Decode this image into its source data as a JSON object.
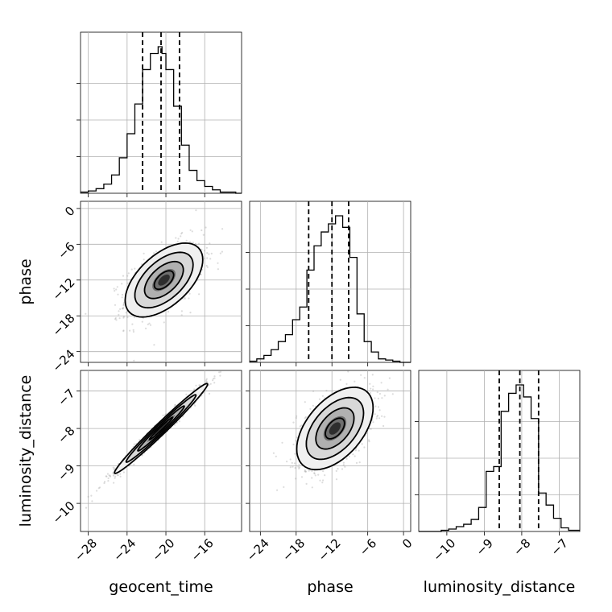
{
  "chart_data": {
    "type": "corner",
    "parameters": [
      "geocent_time",
      "phase",
      "luminosity_distance"
    ],
    "axis_labels": {
      "geocent_time": "geocent_time",
      "phase": "phase",
      "luminosity_distance": "luminosity_distance"
    },
    "ranges": {
      "geocent_time": [
        -28.8,
        -12.2
      ],
      "phase": [
        -25.8,
        1.2
      ],
      "luminosity_distance": [
        -10.75,
        -6.45
      ]
    },
    "ticks": {
      "geocent_time": [
        -28,
        -24,
        -20,
        -16
      ],
      "phase": [
        -24,
        -18,
        -12,
        -6,
        0
      ],
      "luminosity_distance": [
        -10,
        -9,
        -8,
        -7
      ]
    },
    "tick_labels": {
      "geocent_time": [
        "−28",
        "−24",
        "−20",
        "−16"
      ],
      "phase": [
        "−24",
        "−18",
        "−12",
        "−6",
        "0"
      ],
      "luminosity_distance": [
        "−10",
        "−9",
        "−8",
        "−7"
      ]
    },
    "quantiles": {
      "geocent_time": [
        -22.4,
        -20.5,
        -18.6
      ],
      "phase": [
        -15.9,
        -12.0,
        -9.2
      ],
      "luminosity_distance": [
        -8.6,
        -8.05,
        -7.55
      ]
    },
    "histograms": {
      "geocent_time": {
        "edges": [
          -28.8,
          -28.0,
          -27.2,
          -26.4,
          -25.6,
          -24.8,
          -24.0,
          -23.2,
          -22.4,
          -21.6,
          -20.8,
          -20.4,
          -20.0,
          -19.2,
          -18.4,
          -17.6,
          -16.8,
          -16.0,
          -15.2,
          -14.4,
          -13.6,
          -12.8,
          -12.2
        ],
        "counts": [
          1,
          2,
          4,
          8,
          16,
          31,
          52,
          78,
          108,
          122,
          128,
          122,
          108,
          76,
          42,
          20,
          11,
          6,
          3,
          1,
          1,
          0
        ]
      },
      "phase": {
        "edges": [
          -25.8,
          -24.6,
          -23.4,
          -22.2,
          -21.0,
          -19.8,
          -18.6,
          -17.4,
          -16.2,
          -15.0,
          -13.8,
          -12.6,
          -11.4,
          -10.2,
          -9.0,
          -7.8,
          -6.6,
          -5.4,
          -4.2,
          -3.0,
          -1.8,
          -0.6,
          1.2
        ],
        "counts": [
          1,
          3,
          6,
          11,
          18,
          24,
          37,
          48,
          80,
          101,
          113,
          120,
          127,
          117,
          91,
          42,
          18,
          9,
          3,
          2,
          1,
          0
        ]
      },
      "luminosity_distance": {
        "edges": [
          -10.75,
          -10.55,
          -10.35,
          -10.15,
          -9.95,
          -9.75,
          -9.55,
          -9.35,
          -9.15,
          -8.95,
          -8.75,
          -8.55,
          -8.35,
          -8.15,
          -7.95,
          -7.75,
          -7.55,
          -7.35,
          -7.15,
          -6.95,
          -6.75,
          -6.45
        ],
        "counts": [
          0,
          0,
          0,
          1,
          2,
          4,
          6,
          10,
          20,
          50,
          54,
          100,
          115,
          122,
          112,
          94,
          32,
          22,
          11,
          3,
          1
        ]
      }
    },
    "scatter_panels": [
      {
        "x": "geocent_time",
        "y": "phase",
        "center": [
          -20.2,
          -12.0
        ],
        "sigma": [
          2.0,
          3.1
        ],
        "correlation": 0.55
      },
      {
        "x": "geocent_time",
        "y": "luminosity_distance",
        "center": [
          -20.5,
          -8.0
        ],
        "sigma": [
          2.4,
          0.6
        ],
        "correlation": 0.985
      },
      {
        "x": "phase",
        "y": "luminosity_distance",
        "center": [
          -11.5,
          -8.0
        ],
        "sigma": [
          3.2,
          0.55
        ],
        "correlation": 0.5
      }
    ],
    "grid": true
  }
}
